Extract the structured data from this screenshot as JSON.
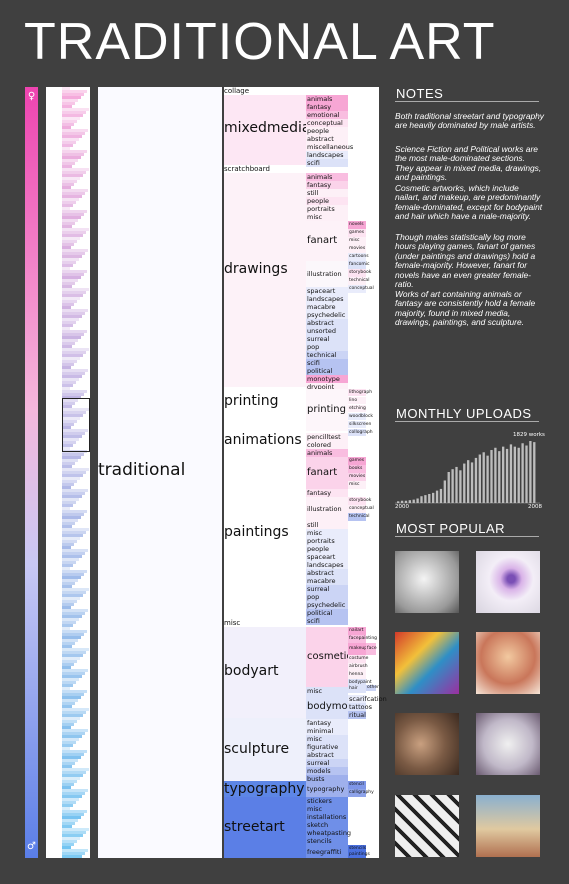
{
  "title": "TRADITIONAL ART",
  "root_label": "traditional",
  "icons": {
    "female": "female-figure-icon",
    "male": "male-figure-icon"
  },
  "colors": {
    "female": "#ee44b0",
    "male": "#5a7ee8",
    "background": "#404040"
  },
  "categories": [
    {
      "label": "collage"
    },
    {
      "label": "mixedmedia",
      "children": [
        "animals",
        "fantasy",
        "emotional",
        "conceptual",
        "people",
        "abstract",
        "miscellaneous",
        "landscapes",
        "scifi"
      ]
    },
    {
      "label": "scratchboard"
    },
    {
      "label": "drawings",
      "children": [
        "animals",
        "fantasy",
        "still",
        "people",
        "portraits",
        "misc",
        "fanart",
        "illustration",
        "spaceart",
        "landscapes",
        "macabre",
        "psychedelic",
        "abstract",
        "unsorted",
        "surreal",
        "pop",
        "technical",
        "scifi",
        "political",
        "monotype",
        "drypoint"
      ],
      "fanart_children": [
        "novels",
        "games",
        "misc",
        "movies",
        "cartoons",
        "fancomic",
        "storybook",
        "technical",
        "conceptual"
      ]
    },
    {
      "label": "printing",
      "children": [
        "printing"
      ],
      "printing_children": [
        "lithograph",
        "lino",
        "etching",
        "woodblock",
        "silkscreen",
        "collograph"
      ]
    },
    {
      "label": "animations",
      "children": [
        "pencilltest",
        "colored"
      ]
    },
    {
      "label": "paintings",
      "children": [
        "animals",
        "fanart",
        "fantasy",
        "illustration",
        "still",
        "misc",
        "portraits",
        "people",
        "spaceart",
        "landscapes",
        "abstract",
        "macabre",
        "surreal",
        "pop",
        "psychedelic",
        "political",
        "scifi"
      ],
      "fanart_children": [
        "games",
        "books",
        "movies",
        "misc"
      ],
      "illustration_children": [
        "storybook",
        "conceptual",
        "technical"
      ]
    },
    {
      "label": "misc"
    },
    {
      "label": "bodyart",
      "children": [
        "cosmetic",
        "misc",
        "bodymods"
      ],
      "cosmetic_children": [
        "nailart",
        "facepainting",
        "makeup",
        "face",
        "costume",
        "airbrush",
        "henna",
        "bodypaint",
        "hair",
        "other"
      ],
      "bodymods_children": [
        "scarifcation",
        "tattoos",
        "ritual"
      ]
    },
    {
      "label": "sculpture",
      "children": [
        "fantasy",
        "minimal",
        "misc",
        "figurative",
        "abstract",
        "surreal",
        "models",
        "busts"
      ]
    },
    {
      "label": "typography",
      "children": [
        "typography"
      ],
      "typography_children": [
        "stencil",
        "calligraphy"
      ]
    },
    {
      "label": "streetart",
      "children": [
        "stickers",
        "misc",
        "installations",
        "sketch",
        "wheatpasting",
        "stencils",
        "freegraffiti"
      ],
      "freegraffiti_children": [
        "stencils",
        "paintings"
      ]
    }
  ],
  "notes": {
    "heading": "NOTES",
    "paragraphs": [
      "Both traditional streetart and typography are heavily dominated by male artists.",
      "Science Fiction and Political works are the most male-dominated sections. They appear in mixed media, drawings, and paintings.",
      "Cosmetic artworks, which include nailart, and makeup, are predominantly female-dominated, except for bodypaint and hair which have a male-majority.",
      "Though males statistically log more hours playing games, fanart of games (under paintings and drawings) hold a female-majority. However, fanart for novels have an even greater female-ratio.",
      "Works of art containing animals or fantasy are consistently hold a female majority, found in mixed media, drawings, paintings, and sculpture."
    ]
  },
  "uploads": {
    "heading": "MONTHLY UPLOADS",
    "peak_label": "1829 works",
    "x_start": "2000",
    "x_end": "2008"
  },
  "popular": {
    "heading": "MOST POPULAR",
    "items": [
      "artwork-thumbnail-1",
      "artwork-thumbnail-2",
      "artwork-thumbnail-3",
      "artwork-thumbnail-4",
      "artwork-thumbnail-5",
      "artwork-thumbnail-6",
      "artwork-thumbnail-7",
      "artwork-thumbnail-8"
    ]
  },
  "chart_data": {
    "type": "bar",
    "title": "MONTHLY UPLOADS",
    "x_range": [
      "2000",
      "2008"
    ],
    "annotation": "1829 works",
    "values": [
      3,
      4,
      4,
      5,
      6,
      8,
      12,
      14,
      16,
      18,
      22,
      25,
      40,
      55,
      60,
      64,
      58,
      70,
      76,
      72,
      80,
      86,
      90,
      84,
      94,
      98,
      92,
      100,
      96,
      104,
      100,
      98,
      106,
      102,
      110,
      108
    ]
  }
}
